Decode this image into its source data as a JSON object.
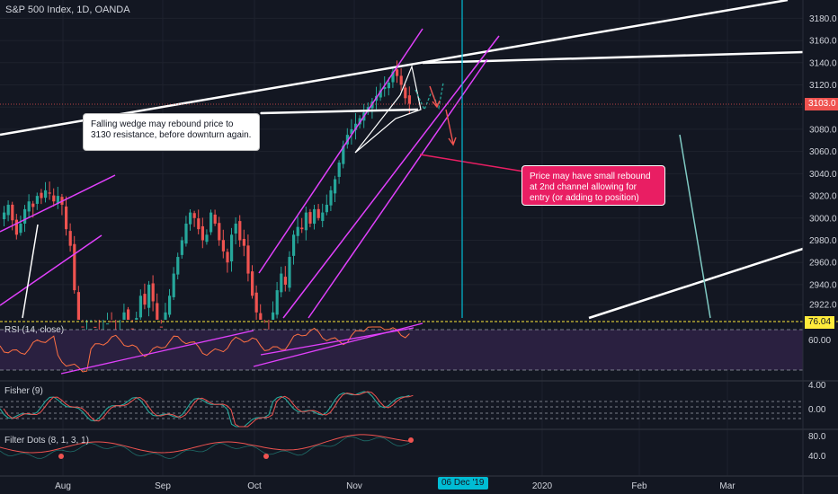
{
  "header": {
    "title": "S&P 500 Index, 1D, OANDA"
  },
  "annotations": {
    "wedge_note": "Falling wedge may rebound price to 3130 resistance, before downturn again.",
    "channel_note": "Price may have small rebound at 2nd channel allowing for entry (or adding to position)"
  },
  "price_tags": {
    "last_price": "3103.0",
    "rsi_value": "76.04"
  },
  "crosshair_date": "06 Dec '19",
  "panels": {
    "rsi": {
      "title": "RSI (14, close)",
      "ticks": [
        "60.00"
      ]
    },
    "fisher": {
      "title": "Fisher (9)",
      "ticks": [
        "4.00",
        "0.00"
      ]
    },
    "filter": {
      "title": "Filter Dots (8, 1, 3, 1)",
      "ticks": [
        "80.0",
        "40.0"
      ]
    }
  },
  "colors": {
    "background": "#131722",
    "up": "#26a69a",
    "down": "#ef5350",
    "channel": "#e040fb",
    "cursor": "#00bcd4",
    "rsi_fill": "#2a2040",
    "red_callout": "#e91e63"
  },
  "chart_data": {
    "type": "candlestick",
    "title": "S&P 500 Index, 1D, OANDA",
    "x_ticks": [
      "Aug",
      "Sep",
      "Oct",
      "Nov",
      "2020",
      "Feb",
      "Mar"
    ],
    "y_ticks": [
      2922,
      2940,
      2960,
      2980,
      3000,
      3020,
      3040,
      3060,
      3080,
      3100,
      3120,
      3140,
      3160,
      3180
    ],
    "ylim": [
      2910,
      3190
    ],
    "last_price": 3103.0,
    "closes": [
      3005,
      3012,
      2998,
      2985,
      2995,
      3008,
      3015,
      3010,
      3020,
      3018,
      3025,
      3022,
      3015,
      3020,
      3012,
      2990,
      2975,
      2935,
      2905,
      2870,
      2888,
      2900,
      2880,
      2865,
      2890,
      2905,
      2885,
      2870,
      2895,
      2915,
      2900,
      2888,
      2910,
      2930,
      2922,
      2940,
      2925,
      2905,
      2890,
      2915,
      2930,
      2950,
      2965,
      2980,
      2995,
      3005,
      3000,
      2990,
      2980,
      2985,
      3005,
      2995,
      2980,
      2970,
      2960,
      2985,
      2995,
      2980,
      2975,
      2950,
      2930,
      2915,
      2900,
      2890,
      2885,
      2915,
      2935,
      2950,
      2940,
      2965,
      2985,
      2992,
      2990,
      3005,
      2995,
      3008,
      3000,
      3005,
      3012,
      3025,
      3035,
      3050,
      3065,
      3075,
      3080,
      3085,
      3090,
      3095,
      3100,
      3105,
      3110,
      3115,
      3118,
      3122,
      3132,
      3128,
      3120,
      3108,
      3103
    ]
  }
}
